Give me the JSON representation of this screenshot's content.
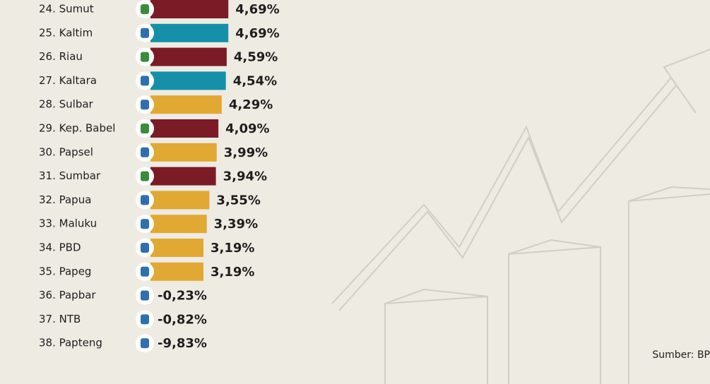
{
  "chart_data": {
    "type": "bar",
    "orientation": "horizontal",
    "categories": [
      "24. Sumut",
      "25. Kaltim",
      "26. Riau",
      "27. Kaltara",
      "28. Sulbar",
      "29. Kep. Babel",
      "30. Papsel",
      "31. Sumbar",
      "32. Papua",
      "33. Maluku",
      "34. PBD",
      "35. Papeg",
      "36. Papbar",
      "37. NTB",
      "38. Papteng"
    ],
    "values": [
      4.69,
      4.69,
      4.59,
      4.54,
      4.29,
      4.09,
      3.99,
      3.94,
      3.55,
      3.39,
      3.19,
      3.19,
      -0.23,
      -0.82,
      -9.83
    ],
    "value_labels": [
      "4,69%",
      "4,69%",
      "4,59%",
      "4,54%",
      "4,29%",
      "4,09%",
      "3,99%",
      "3,94%",
      "3,55%",
      "3,39%",
      "3,19%",
      "3,19%",
      "-0,23%",
      "-0,82%",
      "-9,83%"
    ],
    "colors": [
      "#7b1b25",
      "#1690a9",
      "#7b1b25",
      "#1690a9",
      "#e1a833",
      "#7b1b25",
      "#e1a833",
      "#7b1b25",
      "#e1a833",
      "#e1a833",
      "#e1a833",
      "#e1a833",
      "#e1a833",
      "#e1a833",
      "#e1a833"
    ],
    "source": "Sumber: BP"
  }
}
